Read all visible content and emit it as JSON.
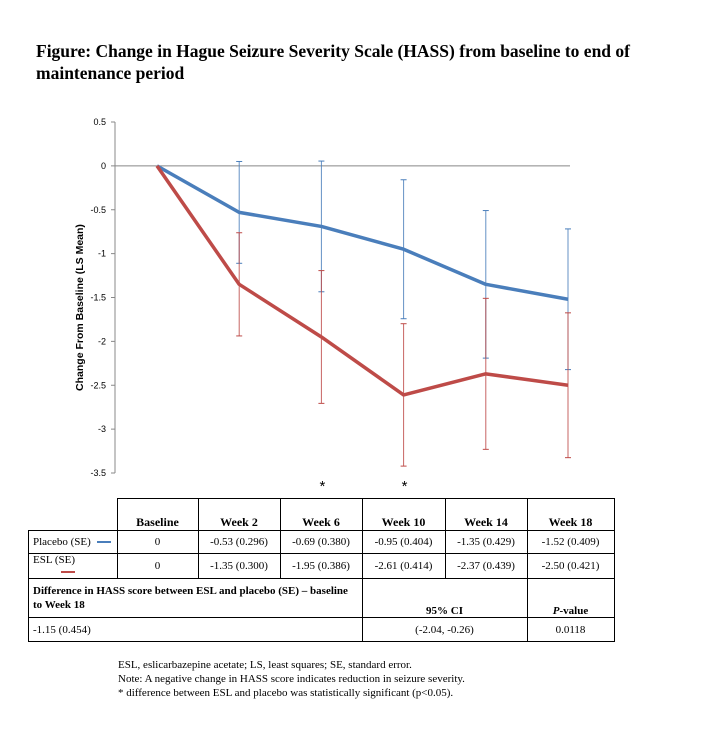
{
  "title": "Figure: Change in Hague Seizure Severity Scale (HASS) from baseline to end of maintenance period",
  "chart_data": {
    "type": "line",
    "ylabel": "Change From Baseline (LS Mean)",
    "ylim": [
      -3.5,
      0.5
    ],
    "yticks": [
      "0.5",
      "0",
      "-0.5",
      "-1",
      "-1.5",
      "-2",
      "-2.5",
      "-3",
      "-3.5"
    ],
    "categories": [
      "Baseline",
      "Week 2",
      "Week 6",
      "Week 10",
      "Week 14",
      "Week 18"
    ],
    "series": [
      {
        "name": "Placebo",
        "color": "#4a7ebb",
        "values": [
          0,
          -0.53,
          -0.69,
          -0.95,
          -1.35,
          -1.52
        ],
        "se": [
          0,
          0.296,
          0.38,
          0.404,
          0.429,
          0.409
        ]
      },
      {
        "name": "ESL",
        "color": "#be4b48",
        "values": [
          0,
          -1.35,
          -1.95,
          -2.61,
          -2.37,
          -2.5
        ],
        "se": [
          0,
          0.3,
          0.386,
          0.414,
          0.439,
          0.421
        ]
      }
    ],
    "significance_marker": "*",
    "significant_categories": [
      "Week 6",
      "Week 10"
    ]
  },
  "table": {
    "headers": [
      "Baseline",
      "Week 2",
      "Week 6",
      "Week 10",
      "Week 14",
      "Week 18"
    ],
    "rows": [
      {
        "label": "Placebo (SE)",
        "cells": [
          "0",
          "-0.53 (0.296)",
          "-0.69 (0.380)",
          "-0.95 (0.404)",
          "-1.35 (0.429)",
          "-1.52 (0.409)"
        ]
      },
      {
        "label": "ESL (SE)",
        "cells": [
          "0",
          "-1.35 (0.300)",
          "-1.95 (0.386)",
          "-2.61 (0.414)",
          "-2.37 (0.439)",
          "-2.50 (0.421)"
        ]
      }
    ],
    "diff_header": "Difference in HASS score between ESL and placebo (SE) – baseline to Week 18",
    "ci_header": "95% CI",
    "p_header_italic": "P",
    "p_header_rest": "-value",
    "diff_value": "-1.15 (0.454)",
    "ci_value": "(-2.04, -0.26)",
    "p_value": "0.0118"
  },
  "notes": [
    "ESL, eslicarbazepine acetate; LS, least squares; SE, standard error.",
    "Note: A negative change in HASS score indicates reduction in seizure severity.",
    "* difference between ESL and placebo was statistically significant (p<0.05)."
  ]
}
